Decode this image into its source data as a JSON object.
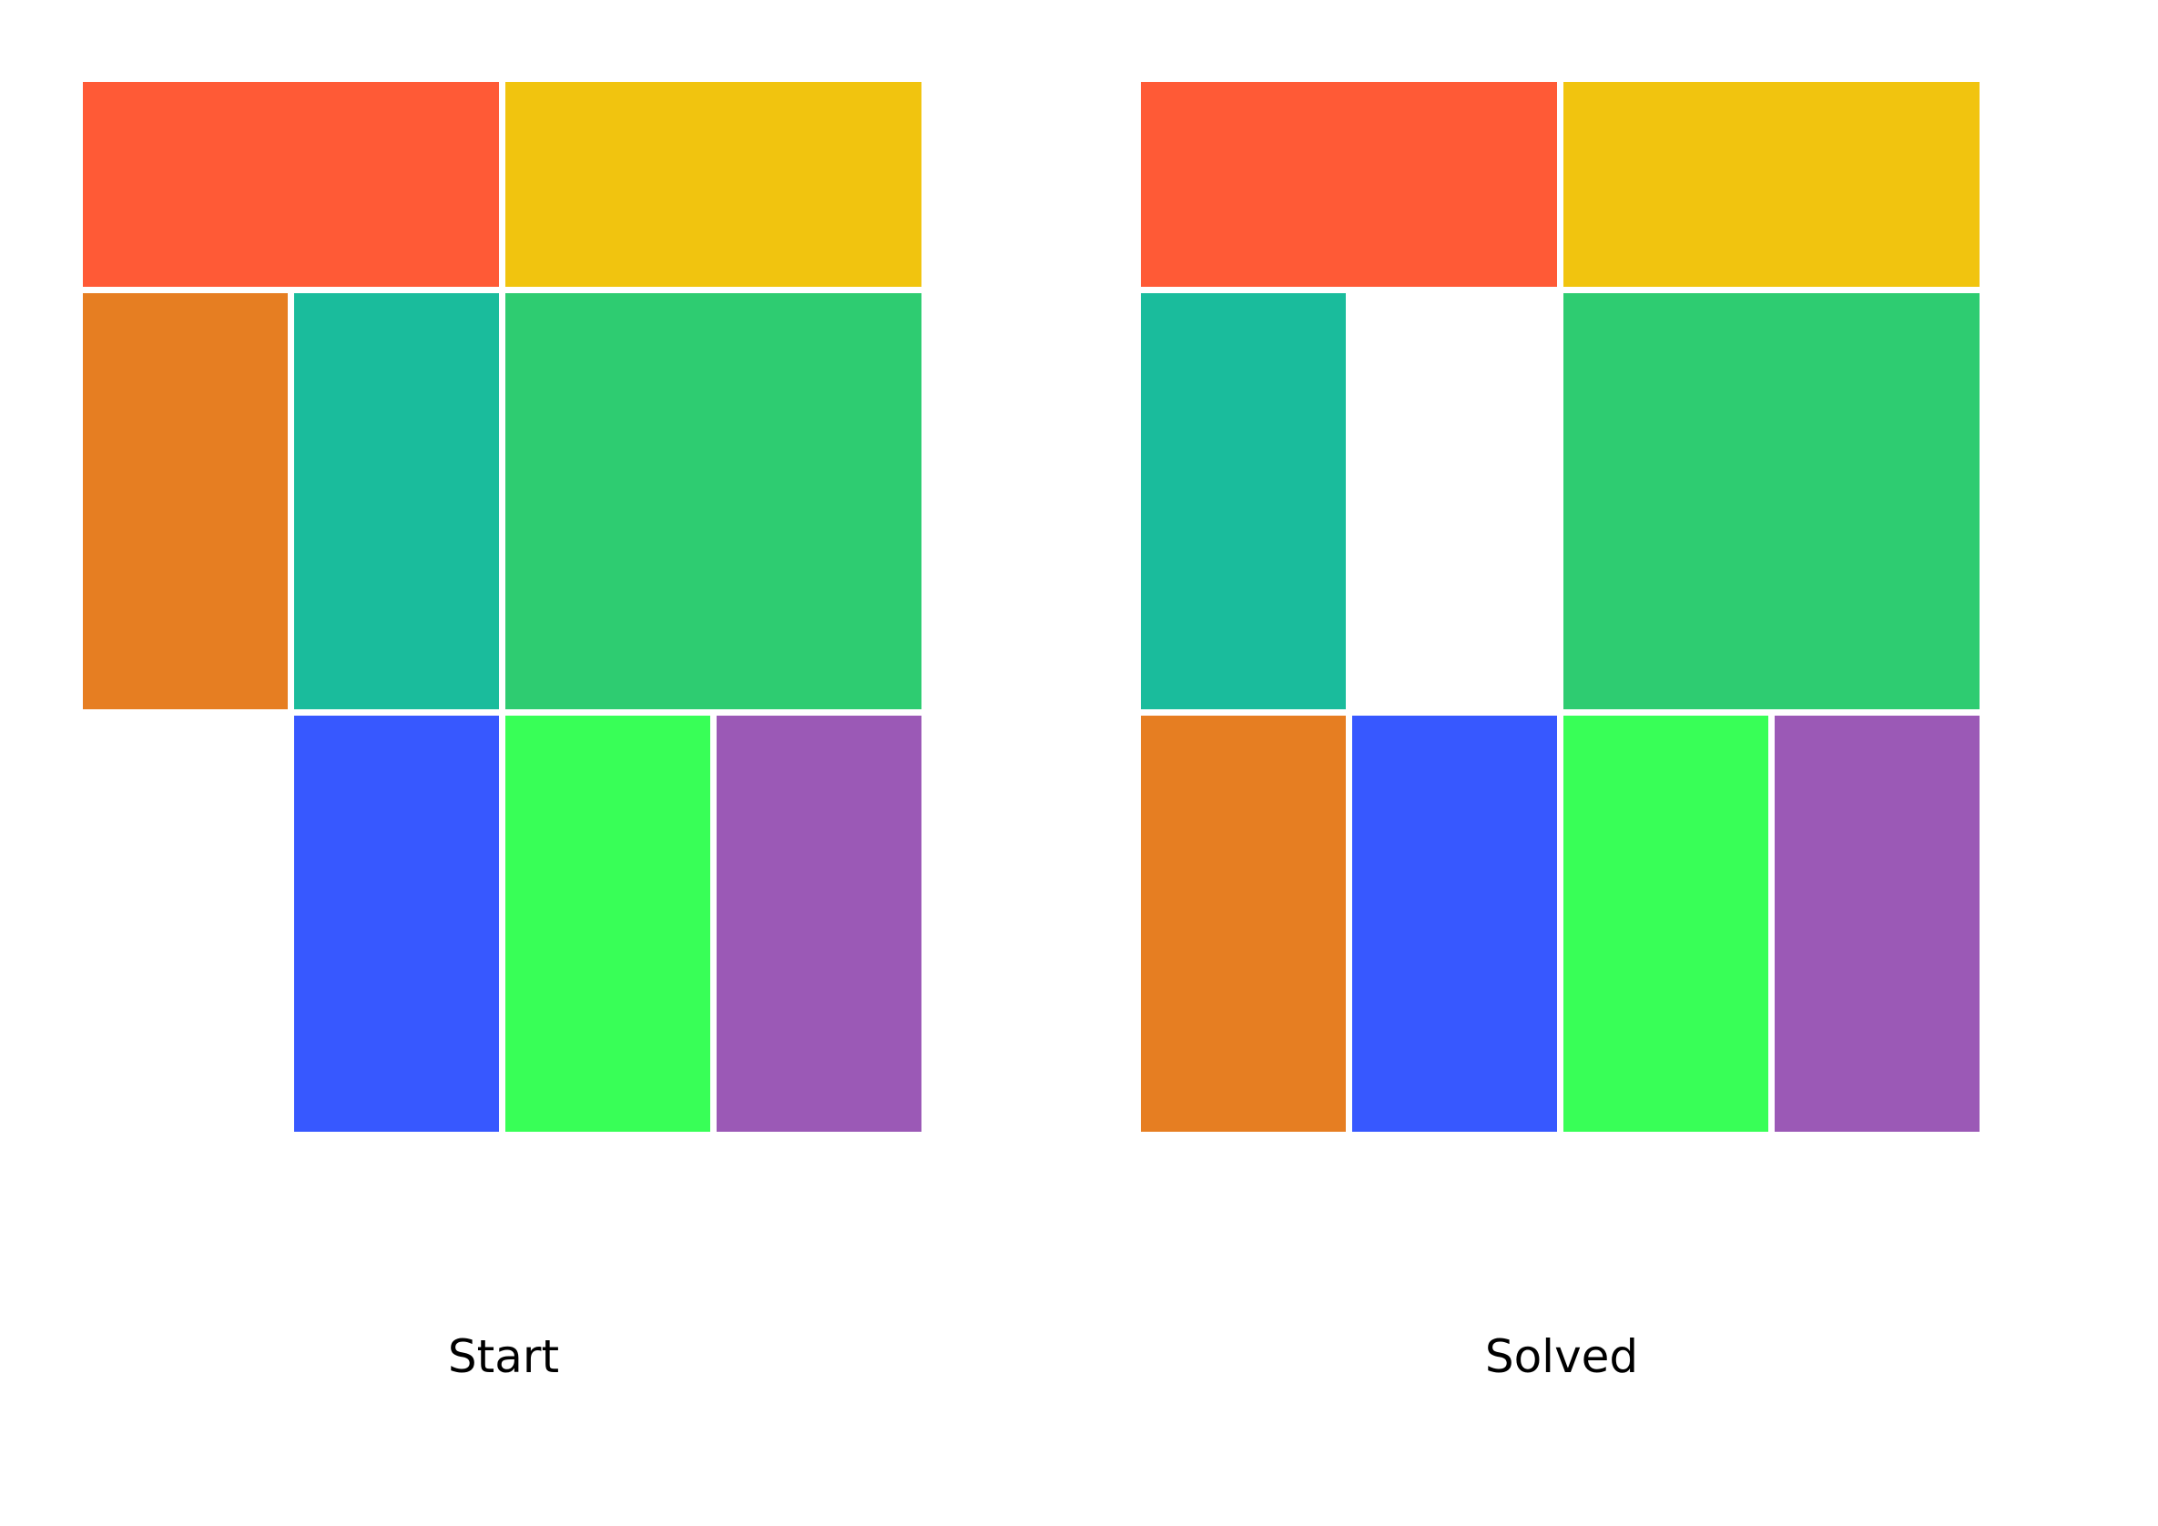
{
  "puzzle": {
    "columns": 4,
    "rows": 5,
    "colors": {
      "red": "#FF5A36",
      "yellow": "#F1C40F",
      "orange": "#E67E22",
      "teal": "#1ABC9C",
      "green": "#2ECC71",
      "blue": "#3758FF",
      "lime": "#38FF57",
      "purple": "#9B59B6"
    },
    "boards": [
      {
        "id": "start",
        "label": "Start",
        "pieces": [
          {
            "id": "red",
            "col": 0,
            "row": 0,
            "w": 2,
            "h": 1
          },
          {
            "id": "yellow",
            "col": 2,
            "row": 0,
            "w": 2,
            "h": 1
          },
          {
            "id": "orange",
            "col": 0,
            "row": 1,
            "w": 1,
            "h": 2
          },
          {
            "id": "teal",
            "col": 1,
            "row": 1,
            "w": 1,
            "h": 2
          },
          {
            "id": "green",
            "col": 2,
            "row": 1,
            "w": 2,
            "h": 2
          },
          {
            "id": "blue",
            "col": 1,
            "row": 3,
            "w": 1,
            "h": 2
          },
          {
            "id": "lime",
            "col": 2,
            "row": 3,
            "w": 1,
            "h": 2
          },
          {
            "id": "purple",
            "col": 3,
            "row": 3,
            "w": 1,
            "h": 2
          }
        ]
      },
      {
        "id": "solved",
        "label": "Solved",
        "pieces": [
          {
            "id": "red",
            "col": 0,
            "row": 0,
            "w": 2,
            "h": 1
          },
          {
            "id": "yellow",
            "col": 2,
            "row": 0,
            "w": 2,
            "h": 1
          },
          {
            "id": "teal",
            "col": 0,
            "row": 1,
            "w": 1,
            "h": 2
          },
          {
            "id": "green",
            "col": 2,
            "row": 1,
            "w": 2,
            "h": 2
          },
          {
            "id": "orange",
            "col": 0,
            "row": 3,
            "w": 1,
            "h": 2
          },
          {
            "id": "blue",
            "col": 1,
            "row": 3,
            "w": 1,
            "h": 2
          },
          {
            "id": "lime",
            "col": 2,
            "row": 3,
            "w": 1,
            "h": 2
          },
          {
            "id": "purple",
            "col": 3,
            "row": 3,
            "w": 1,
            "h": 2
          }
        ]
      }
    ]
  }
}
